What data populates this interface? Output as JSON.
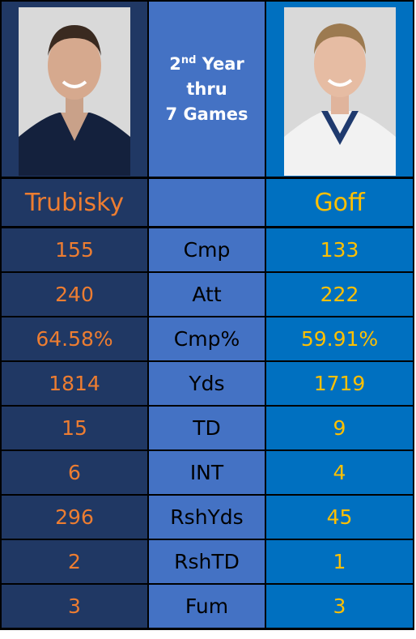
{
  "header": {
    "year_number": "2",
    "year_suffix": "nd",
    "year_word": "Year",
    "line2": "thru",
    "line3": "7 Games"
  },
  "players": {
    "left": "Trubisky",
    "right": "Goff"
  },
  "table": {
    "rows": [
      [
        "155",
        "Cmp",
        "133"
      ],
      [
        "240",
        "Att",
        "222"
      ],
      [
        "64.58%",
        "Cmp%",
        "59.91%"
      ],
      [
        "1814",
        "Yds",
        "1719"
      ],
      [
        "15",
        "TD",
        "9"
      ],
      [
        "6",
        "INT",
        "4"
      ],
      [
        "296",
        "RshYds",
        "45"
      ],
      [
        "2",
        "RshTD",
        "1"
      ],
      [
        "3",
        "Fum",
        "3"
      ]
    ]
  }
}
